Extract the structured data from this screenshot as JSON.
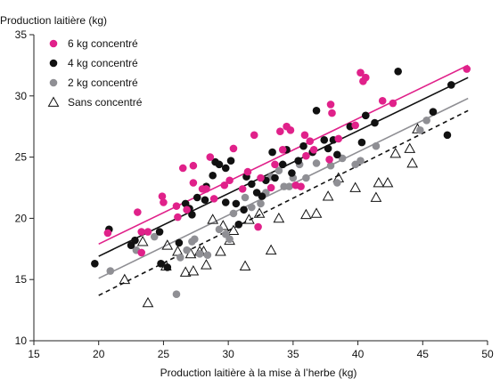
{
  "chart_data": {
    "type": "scatter",
    "title": "",
    "ylabel": "Production laitière (kg)",
    "xlabel": "Production laitière à la mise à l’herbe (kg)",
    "xlim": [
      15,
      50
    ],
    "ylim": [
      10,
      35
    ],
    "xticks": [
      15,
      20,
      25,
      30,
      35,
      40,
      45,
      50
    ],
    "yticks": [
      10,
      15,
      20,
      25,
      30,
      35
    ],
    "grid": false,
    "legend_position": "top-left",
    "series": [
      {
        "name": "6 kg concentré",
        "marker": "circle-filled",
        "color": "#e0218a",
        "line": {
          "x": [
            20,
            48.5
          ],
          "y": [
            17.9,
            32.5
          ],
          "dash": "solid"
        },
        "points": [
          [
            20.7,
            18.8
          ],
          [
            23.0,
            20.5
          ],
          [
            23.3,
            18.9
          ],
          [
            23.8,
            18.9
          ],
          [
            23.3,
            17.2
          ],
          [
            24.9,
            21.8
          ],
          [
            25.0,
            21.3
          ],
          [
            26.0,
            21.0
          ],
          [
            26.1,
            20.1
          ],
          [
            26.8,
            20.7
          ],
          [
            26.5,
            24.1
          ],
          [
            27.3,
            24.3
          ],
          [
            27.3,
            22.9
          ],
          [
            28.0,
            22.4
          ],
          [
            28.3,
            22.4
          ],
          [
            28.6,
            25.0
          ],
          [
            28.9,
            21.6
          ],
          [
            29.7,
            22.7
          ],
          [
            30.1,
            23.1
          ],
          [
            30.4,
            25.7
          ],
          [
            31.1,
            22.4
          ],
          [
            31.5,
            23.8
          ],
          [
            32.0,
            26.8
          ],
          [
            32.3,
            19.3
          ],
          [
            32.5,
            23.3
          ],
          [
            33.3,
            22.5
          ],
          [
            33.6,
            24.4
          ],
          [
            34.0,
            27.1
          ],
          [
            34.2,
            25.6
          ],
          [
            34.5,
            27.5
          ],
          [
            34.8,
            27.2
          ],
          [
            35.2,
            22.7
          ],
          [
            35.6,
            22.6
          ],
          [
            35.9,
            26.8
          ],
          [
            36.0,
            25.1
          ],
          [
            36.3,
            26.3
          ],
          [
            36.6,
            25.6
          ],
          [
            37.9,
            29.3
          ],
          [
            38.0,
            28.6
          ],
          [
            37.8,
            24.8
          ],
          [
            38.5,
            26.5
          ],
          [
            39.8,
            27.6
          ],
          [
            40.2,
            31.9
          ],
          [
            40.4,
            31.2
          ],
          [
            40.6,
            31.5
          ],
          [
            41.9,
            29.6
          ],
          [
            42.7,
            29.4
          ],
          [
            48.4,
            32.2
          ]
        ]
      },
      {
        "name": "4 kg concentré",
        "marker": "circle-filled",
        "color": "#111111",
        "line": {
          "x": [
            20,
            48.5
          ],
          "y": [
            16.9,
            31.5
          ],
          "dash": "solid"
        },
        "points": [
          [
            19.7,
            16.3
          ],
          [
            20.8,
            19.1
          ],
          [
            22.5,
            17.8
          ],
          [
            22.8,
            18.2
          ],
          [
            24.8,
            16.3
          ],
          [
            25.3,
            16.0
          ],
          [
            24.7,
            18.9
          ],
          [
            26.2,
            18.0
          ],
          [
            26.7,
            21.2
          ],
          [
            27.0,
            20.8
          ],
          [
            27.2,
            20.3
          ],
          [
            27.6,
            21.7
          ],
          [
            28.3,
            22.6
          ],
          [
            28.2,
            21.5
          ],
          [
            28.8,
            23.5
          ],
          [
            29.0,
            24.6
          ],
          [
            29.3,
            24.4
          ],
          [
            29.8,
            24.1
          ],
          [
            29.8,
            21.3
          ],
          [
            30.2,
            24.7
          ],
          [
            30.6,
            21.2
          ],
          [
            30.8,
            19.5
          ],
          [
            31.2,
            20.7
          ],
          [
            31.4,
            23.4
          ],
          [
            31.8,
            22.8
          ],
          [
            32.2,
            22.1
          ],
          [
            32.6,
            21.8
          ],
          [
            32.9,
            23.1
          ],
          [
            33.4,
            25.4
          ],
          [
            33.6,
            23.3
          ],
          [
            34.2,
            24.4
          ],
          [
            34.5,
            25.6
          ],
          [
            34.9,
            23.7
          ],
          [
            35.4,
            24.7
          ],
          [
            35.8,
            25.9
          ],
          [
            36.5,
            25.4
          ],
          [
            36.8,
            28.8
          ],
          [
            37.4,
            26.4
          ],
          [
            37.7,
            25.7
          ],
          [
            38.1,
            26.4
          ],
          [
            38.4,
            25.2
          ],
          [
            39.4,
            27.5
          ],
          [
            40.3,
            26.2
          ],
          [
            40.6,
            28.4
          ],
          [
            41.3,
            27.8
          ],
          [
            43.1,
            32.0
          ],
          [
            45.8,
            28.7
          ],
          [
            46.9,
            26.8
          ],
          [
            47.2,
            30.9
          ]
        ]
      },
      {
        "name": "2 kg concentré",
        "marker": "circle-filled",
        "color": "#8f8f94",
        "line": {
          "x": [
            20,
            48.5
          ],
          "y": [
            15.1,
            29.8
          ],
          "dash": "solid"
        },
        "points": [
          [
            20.9,
            15.7
          ],
          [
            22.9,
            17.4
          ],
          [
            24.3,
            18.5
          ],
          [
            26.0,
            13.8
          ],
          [
            26.3,
            16.8
          ],
          [
            26.8,
            17.4
          ],
          [
            27.2,
            18.1
          ],
          [
            27.4,
            18.3
          ],
          [
            27.8,
            17.1
          ],
          [
            28.4,
            17.0
          ],
          [
            29.3,
            19.1
          ],
          [
            29.8,
            18.7
          ],
          [
            30.1,
            18.3
          ],
          [
            30.4,
            20.4
          ],
          [
            30.8,
            19.5
          ],
          [
            31.3,
            21.7
          ],
          [
            31.8,
            20.9
          ],
          [
            32.5,
            21.2
          ],
          [
            32.9,
            22.1
          ],
          [
            33.3,
            23.4
          ],
          [
            33.9,
            23.9
          ],
          [
            34.3,
            22.6
          ],
          [
            34.7,
            22.6
          ],
          [
            35.0,
            23.3
          ],
          [
            35.5,
            24.4
          ],
          [
            36.0,
            23.3
          ],
          [
            36.8,
            24.5
          ],
          [
            37.9,
            24.3
          ],
          [
            38.4,
            22.9
          ],
          [
            38.8,
            24.9
          ],
          [
            39.8,
            24.4
          ],
          [
            40.2,
            24.7
          ],
          [
            41.4,
            25.9
          ],
          [
            44.8,
            27.2
          ],
          [
            45.3,
            28.0
          ],
          [
            45.8,
            28.7
          ]
        ]
      },
      {
        "name": "Sans concentré",
        "marker": "triangle-open",
        "color": "#111111",
        "line": {
          "x": [
            20,
            48.5
          ],
          "y": [
            13.7,
            28.8
          ],
          "dash": "dashed"
        },
        "points": [
          [
            22.0,
            15.0
          ],
          [
            23.4,
            18.1
          ],
          [
            23.8,
            13.1
          ],
          [
            25.2,
            16.1
          ],
          [
            25.3,
            17.8
          ],
          [
            26.1,
            17.3
          ],
          [
            26.7,
            15.6
          ],
          [
            27.1,
            17.1
          ],
          [
            27.3,
            15.7
          ],
          [
            27.8,
            17.3
          ],
          [
            28.1,
            17.3
          ],
          [
            28.3,
            16.2
          ],
          [
            28.8,
            19.9
          ],
          [
            29.4,
            17.3
          ],
          [
            29.6,
            19.4
          ],
          [
            30.1,
            18.2
          ],
          [
            30.4,
            19.0
          ],
          [
            31.3,
            16.1
          ],
          [
            31.6,
            19.9
          ],
          [
            32.4,
            20.4
          ],
          [
            33.3,
            17.4
          ],
          [
            33.9,
            20.0
          ],
          [
            36.0,
            20.3
          ],
          [
            36.8,
            20.4
          ],
          [
            37.7,
            21.8
          ],
          [
            38.5,
            23.3
          ],
          [
            39.8,
            22.5
          ],
          [
            41.4,
            21.7
          ],
          [
            41.6,
            22.9
          ],
          [
            42.3,
            22.9
          ],
          [
            42.9,
            25.3
          ],
          [
            44.0,
            25.7
          ],
          [
            44.2,
            24.5
          ],
          [
            44.6,
            27.3
          ]
        ]
      }
    ]
  }
}
